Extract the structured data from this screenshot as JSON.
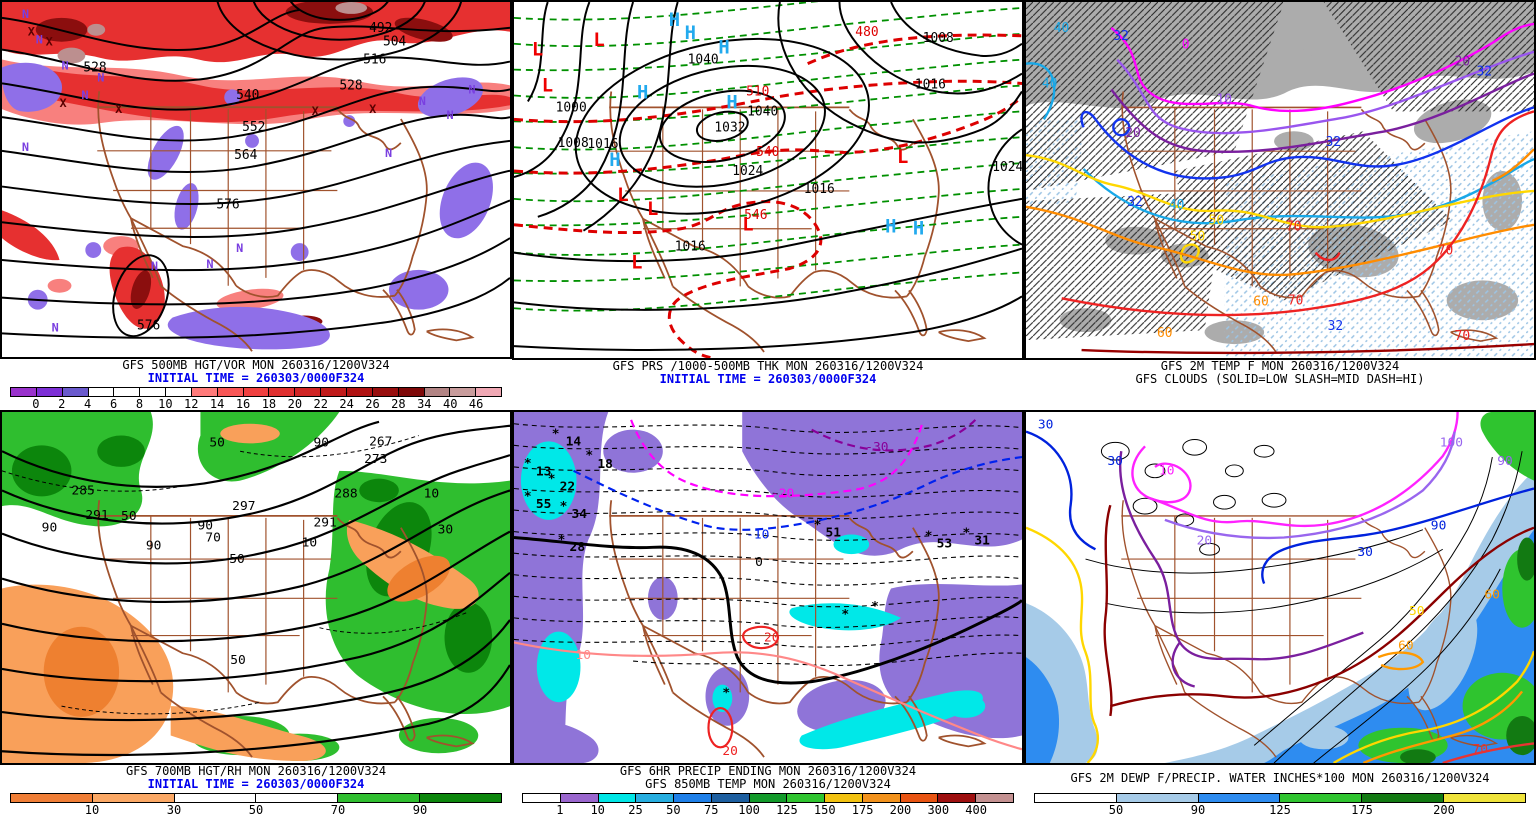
{
  "colors": {
    "geography": "#A0522D",
    "init_time_text": "#0000EE",
    "caption_text": "#000000",
    "panel1": {
      "contours": "#000000",
      "vort_light": "#F8807E",
      "vort_red": "#E63030",
      "vort_dark": "#8B0E0E",
      "vort_core": "#BC8F8F",
      "neg_fill": "#8F6FE8",
      "neg_symbol": "#7A3FE0",
      "max_symbol": "#5A0000"
    },
    "panel2": {
      "isobars": "#000000",
      "thickness_low": "#009000",
      "thickness_high": "#DD0000",
      "high_symbol": "#22AAEE",
      "low_symbol": "#EE0000"
    },
    "panel3": {
      "cloud_low": "#ACACAC",
      "cloud_mid": "#2A2A2A",
      "cloud_high": "#9CC4E4",
      "t0": "#FF00FF",
      "t10": "#9955EE",
      "t20": "#7A1F9E",
      "t32": "#1133EE",
      "t40": "#18A8E8",
      "t50": "#FFD700",
      "t60": "#FF8C00",
      "t70": "#EE2222",
      "t80": "#990000"
    },
    "panel4": {
      "contours": "#000000",
      "rh_dry": "#F9A05A",
      "rh_dry_core": "#EE8030",
      "rh_moist": "#2FBE2F",
      "rh_moist_core": "#0C860C"
    },
    "panel5": {
      "temp_sub": "#000000",
      "temp_m10": "#0022EE",
      "temp_m20": "#FF00FF",
      "temp_m30": "#880099",
      "temp_p10": "#FF8888",
      "temp_p20": "#EE2222",
      "precip": "#8F74D8",
      "precip_heavy": "#00E8E8",
      "snow": "#000000"
    },
    "panel6": {
      "contours": "#000000",
      "d10": "#FF22FF",
      "d20": "#9966EE",
      "d30": "#0022DD",
      "d40": "#7A1F9E",
      "d50": "#FFD700",
      "d60": "#FF9900",
      "d70": "#E83333",
      "d80": "#8B0000",
      "pw1": "#A6CBE8",
      "pw2": "#2E8CF0",
      "pw3": "#2FC42F",
      "pw4": "#127A12"
    }
  },
  "panels": {
    "p1": {
      "caption1": "GFS 500MB HGT/VOR MON 260316/1200V324",
      "caption2": "INITIAL TIME = 260303/0000F324",
      "height_labels": [
        "492",
        "504",
        "516",
        "528",
        "540",
        "552",
        "564",
        "576",
        "576",
        "528"
      ],
      "symbols": {
        "min": "N",
        "max": "X"
      },
      "colorbar": {
        "ticks": [
          "0",
          "2",
          "4",
          "6",
          "8",
          "10",
          "12",
          "14",
          "16",
          "18",
          "20",
          "22",
          "24",
          "26",
          "28",
          "34",
          "40",
          "46"
        ],
        "segments": [
          "#9932CC",
          "#7D2FD6",
          "#6A5ACD",
          "#FFFFFF",
          "#FFFFFF",
          "#FFFFFF",
          "#FFFFFF",
          "#FF7A7A",
          "#F85656",
          "#F04040",
          "#E03030",
          "#D02424",
          "#C01A1A",
          "#B01212",
          "#980E0E",
          "#7E0808",
          "#B28484",
          "#C89C9C",
          "#F0A8B4"
        ]
      }
    },
    "p2": {
      "caption1": "GFS PRS /1000-500MB THK MON 260316/1200V324",
      "caption2": "INITIAL TIME = 260303/0000F324",
      "pressure_labels": [
        "1040",
        "1040",
        "1032",
        "1000",
        "1008",
        "1016",
        "1024",
        "1016",
        "1008",
        "1016",
        "1016",
        "1024"
      ],
      "thickness_labels": [
        "480",
        "510",
        "540",
        "546"
      ],
      "symbols": {
        "high": "H",
        "low": "L"
      }
    },
    "p3": {
      "caption1": "GFS 2M TEMP F MON 260316/1200V324",
      "caption2": "GFS CLOUDS (SOLID=LOW SLASH=MID DASH=HI)",
      "temp_labels": {
        "t0": "0",
        "t10": "10",
        "t20": "20",
        "t32": "32",
        "t40": "40",
        "t50": "50",
        "t60": "60",
        "t70": "70"
      }
    },
    "p4": {
      "caption1": "GFS 700MB HGT/RH MON 260316/1200V324",
      "caption2": "INITIAL TIME = 260303/0000F324",
      "height_labels": [
        "267",
        "273",
        "285",
        "288",
        "291",
        "291",
        "297"
      ],
      "rh_labels": {
        "r10": "10",
        "r30": "30",
        "r50": "50",
        "r70": "70",
        "r90": "90"
      },
      "colorbar": {
        "ticks": [
          "10",
          "30",
          "50",
          "70",
          "90"
        ],
        "segments": [
          "#F07E36",
          "#FBA865",
          "#FFFFFF",
          "#FFFFFF",
          "#2FBE2F",
          "#0C860C"
        ]
      }
    },
    "p5": {
      "caption1": "GFS 6HR PRECIP ENDING MON 260316/1200V324",
      "caption2": "GFS 850MB TEMP MON 260316/1200V324",
      "line_labels": {
        "m30": "-30",
        "m20": "-20",
        "m10": "-10",
        "zero": "0",
        "p10": "10",
        "p20": "20"
      },
      "snow_marker": "*",
      "snow_values": [
        "14",
        "18",
        "13",
        "22",
        "55",
        "34",
        "28",
        "51",
        "53",
        "31"
      ],
      "colorbar": {
        "ticks": [
          "1",
          "10",
          "25",
          "50",
          "75",
          "100",
          "125",
          "150",
          "175",
          "200",
          "300",
          "400"
        ],
        "segments": [
          "#FFFFFF",
          "#9A66CE",
          "#00E6E6",
          "#27AEE0",
          "#1E7FE8",
          "#1D5FA0",
          "#129A2A",
          "#2FC42F",
          "#F2C211",
          "#F2921C",
          "#E85412",
          "#9E1010",
          "#C49191"
        ]
      }
    },
    "p6": {
      "caption1": "GFS 2M DEWP F/PRECIP. WATER INCHES*100 MON 260316/1200V324",
      "dewp_labels": {
        "d10": "10",
        "d20": "20",
        "d30": "30",
        "d50": "50",
        "d60": "60",
        "d70": "70",
        "d90": "90",
        "d100": "100"
      },
      "colorbar": {
        "ticks": [
          "50",
          "90",
          "125",
          "175",
          "200"
        ],
        "segments": [
          "#FFFFFF",
          "#A6CBE8",
          "#2E8CF0",
          "#2FC42F",
          "#127A12",
          "#EFE33B"
        ]
      }
    }
  }
}
